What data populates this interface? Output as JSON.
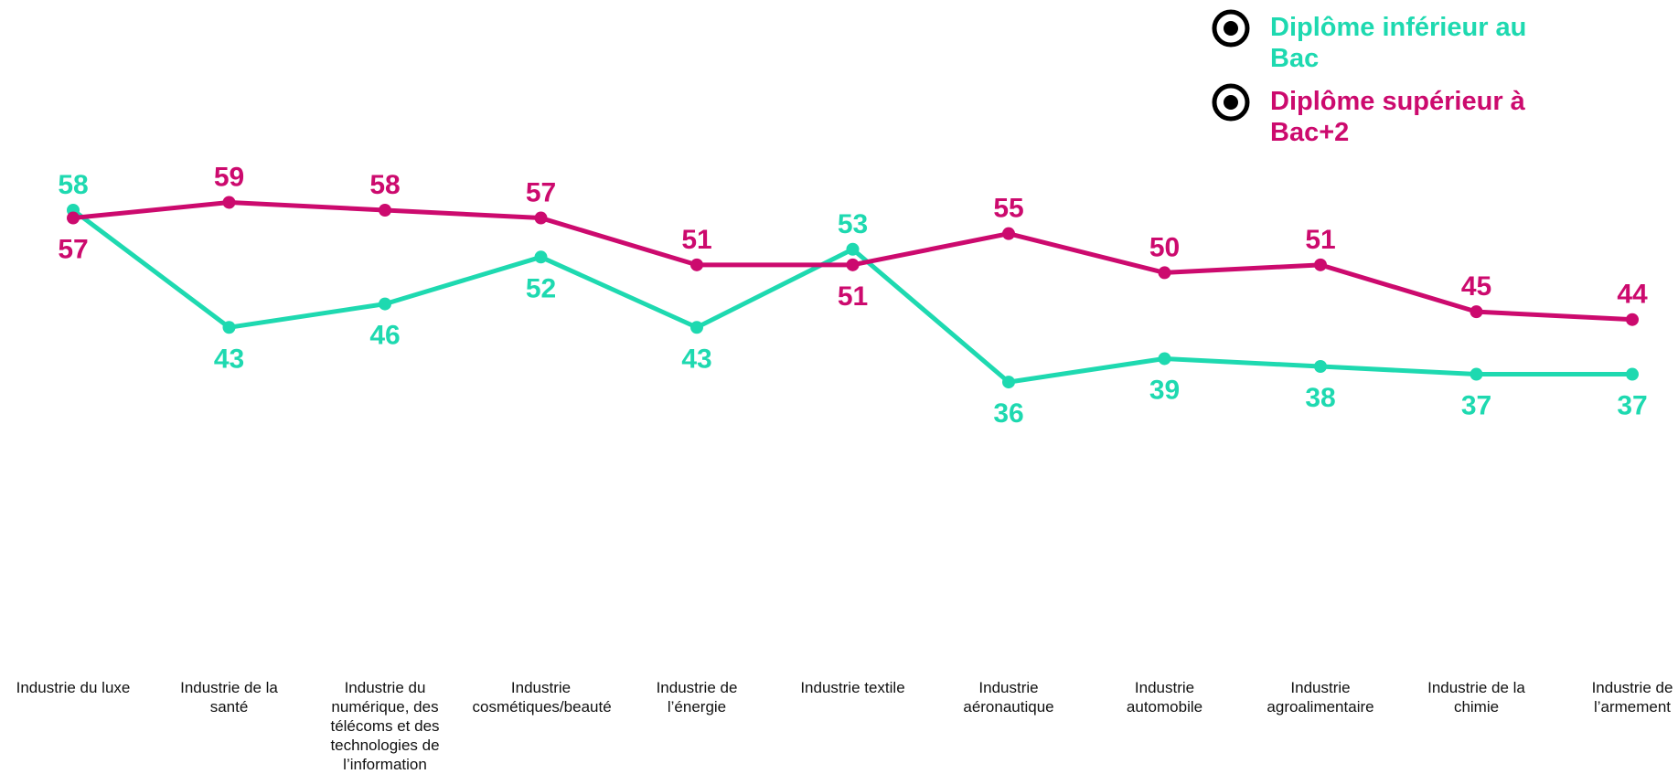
{
  "chart_data": {
    "type": "line",
    "categories": [
      "Industrie du luxe",
      "Industrie de la santé",
      "Industrie du numérique, des télécoms et des technologies de l’information",
      "Industrie cosmétiques/beauté",
      "Industrie de l’énergie",
      "Industrie textile",
      "Industrie aéronautique",
      "Industrie automobile",
      "Industrie agroalimentaire",
      "Industrie de la chimie",
      "Industrie de l’armement"
    ],
    "series": [
      {
        "name": "Diplôme inférieur au Bac",
        "color": "#1ed9b0",
        "values": [
          58,
          43,
          46,
          52,
          43,
          53,
          36,
          39,
          38,
          37,
          37
        ]
      },
      {
        "name": "Diplôme supérieur à Bac+2",
        "color": "#cc0a6e",
        "values": [
          57,
          59,
          58,
          57,
          51,
          51,
          55,
          50,
          51,
          45,
          44
        ]
      }
    ],
    "legend_position": "top-right",
    "grid": false
  },
  "legend_icon": "target-icon"
}
